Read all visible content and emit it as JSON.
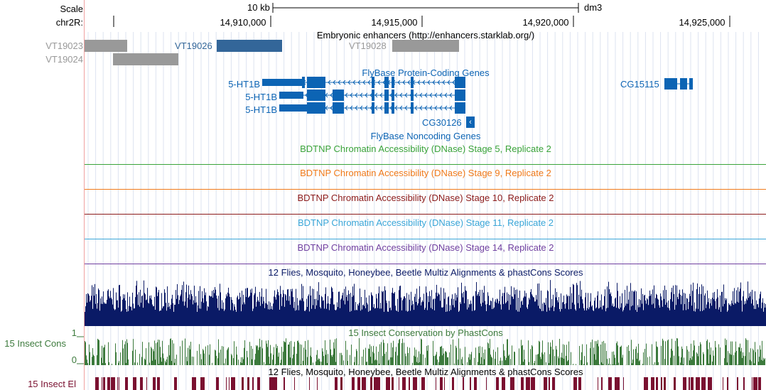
{
  "ruler": {
    "scale_label": "Scale",
    "chrom_label": "chr2R:",
    "scale_text": "10 kb",
    "assembly": "dm3",
    "ticks": [
      "14,910,000",
      "14,915,000",
      "14,920,000",
      "14,925,000"
    ]
  },
  "enhancers": {
    "title": "Embryonic enhancers (http://enhancers.starklab.org/)",
    "items": [
      {
        "name": "VT19023",
        "color": "#999999"
      },
      {
        "name": "VT19024",
        "color": "#999999"
      },
      {
        "name": "VT19026",
        "color": "#336699"
      },
      {
        "name": "VT19028",
        "color": "#999999"
      }
    ]
  },
  "flybase_coding": {
    "title": "FlyBase Protein-Coding Genes",
    "color": "#0c64b4",
    "genes": [
      "5-HT1B",
      "5-HT1B",
      "5-HT1B",
      "CG15115"
    ]
  },
  "flybase_noncoding": {
    "title": "FlyBase Noncoding Genes",
    "gene": "CG30126"
  },
  "dnase": [
    {
      "title": "BDTNP Chromatin Accessibility (DNase) Stage 5, Replicate 2",
      "color": "#3aa33a"
    },
    {
      "title": "BDTNP Chromatin Accessibility (DNase) Stage 9, Replicate 2",
      "color": "#f07a1a"
    },
    {
      "title": "BDTNP Chromatin Accessibility (DNase) Stage 10, Replicate 2",
      "color": "#8b1a1a"
    },
    {
      "title": "BDTNP Chromatin Accessibility (DNase) Stage 11, Replicate 2",
      "color": "#3aa6d8"
    },
    {
      "title": "BDTNP Chromatin Accessibility (DNase) Stage 14, Replicate 2",
      "color": "#7040a0"
    }
  ],
  "multiz": {
    "title": "12 Flies, Mosquito, Honeybee, Beetle Multiz Alignments & phastCons Scores",
    "color": "#0a1a66"
  },
  "phastcons": {
    "title": "15 Insect Conservation by PhastCons",
    "side_label": "15 Insect Cons",
    "max_label": "1",
    "min_label": "0",
    "color": "#3c7a3c"
  },
  "elements": {
    "title": "12 Flies, Mosquito, Honeybee, Beetle Multiz Alignments & phastCons Scores",
    "side_label": "15 Insect El",
    "color": "#7a1030"
  }
}
